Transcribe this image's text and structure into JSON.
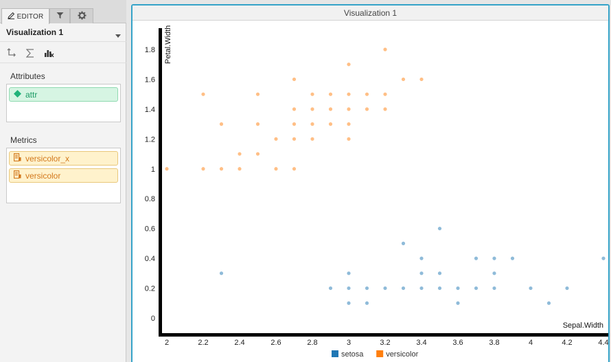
{
  "editor": {
    "tabs": [
      {
        "label": "EDITOR",
        "icon": "pencil-icon"
      },
      {
        "label": "",
        "icon": "filter-icon"
      },
      {
        "label": "",
        "icon": "gear-icon"
      }
    ],
    "viz_name": "Visualization 1",
    "toolbar": [
      "swap-axes-icon",
      "sigma-icon",
      "chart-type-icon"
    ],
    "attributes_title": "Attributes",
    "attributes": [
      {
        "label": "attr",
        "icon": "diamond-icon"
      }
    ],
    "metrics_title": "Metrics",
    "metrics": [
      {
        "label": "versicolor_x",
        "icon": "metric-icon"
      },
      {
        "label": "versicolor",
        "icon": "metric-icon"
      }
    ]
  },
  "viz": {
    "title": "Visualization 1"
  },
  "colors": {
    "setosa": "#1f77b4",
    "versicolor": "#ff7f0e",
    "accent": "#35a3c8"
  },
  "chart_data": {
    "type": "scatter",
    "xlabel": "Sepal.Width",
    "ylabel": "Petal.Width",
    "xlim": [
      2,
      4.4
    ],
    "ylim": [
      0,
      1.8
    ],
    "x_ticks": [
      "2",
      "2.2",
      "2.4",
      "2.6",
      "2.8",
      "3",
      "3.2",
      "3.4",
      "3.6",
      "3.8",
      "4",
      "4.2",
      "4.4"
    ],
    "y_ticks": [
      "0",
      "0.2",
      "0.4",
      "0.6",
      "0.8",
      "1",
      "1.2",
      "1.4",
      "1.6",
      "1.8"
    ],
    "legend_position": "bottom",
    "series": [
      {
        "name": "setosa",
        "color": "#1f77b4",
        "points": [
          [
            2.3,
            0.3
          ],
          [
            2.9,
            0.2
          ],
          [
            3.0,
            0.1
          ],
          [
            3.0,
            0.2
          ],
          [
            3.0,
            0.3
          ],
          [
            3.1,
            0.1
          ],
          [
            3.1,
            0.2
          ],
          [
            3.2,
            0.2
          ],
          [
            3.3,
            0.2
          ],
          [
            3.3,
            0.5
          ],
          [
            3.4,
            0.2
          ],
          [
            3.4,
            0.3
          ],
          [
            3.4,
            0.4
          ],
          [
            3.5,
            0.2
          ],
          [
            3.5,
            0.3
          ],
          [
            3.5,
            0.6
          ],
          [
            3.6,
            0.1
          ],
          [
            3.6,
            0.2
          ],
          [
            3.7,
            0.2
          ],
          [
            3.7,
            0.4
          ],
          [
            3.8,
            0.2
          ],
          [
            3.8,
            0.3
          ],
          [
            3.8,
            0.4
          ],
          [
            3.9,
            0.4
          ],
          [
            4.0,
            0.2
          ],
          [
            4.1,
            0.1
          ],
          [
            4.2,
            0.2
          ],
          [
            4.4,
            0.4
          ]
        ]
      },
      {
        "name": "versicolor",
        "color": "#ff7f0e",
        "points": [
          [
            2.0,
            1.0
          ],
          [
            2.2,
            1.0
          ],
          [
            2.2,
            1.5
          ],
          [
            2.3,
            1.0
          ],
          [
            2.3,
            1.3
          ],
          [
            2.4,
            1.0
          ],
          [
            2.4,
            1.1
          ],
          [
            2.5,
            1.1
          ],
          [
            2.5,
            1.3
          ],
          [
            2.5,
            1.5
          ],
          [
            2.6,
            1.0
          ],
          [
            2.6,
            1.2
          ],
          [
            2.7,
            1.0
          ],
          [
            2.7,
            1.2
          ],
          [
            2.7,
            1.3
          ],
          [
            2.7,
            1.4
          ],
          [
            2.7,
            1.6
          ],
          [
            2.8,
            1.2
          ],
          [
            2.8,
            1.3
          ],
          [
            2.8,
            1.4
          ],
          [
            2.8,
            1.5
          ],
          [
            2.9,
            1.3
          ],
          [
            2.9,
            1.4
          ],
          [
            2.9,
            1.5
          ],
          [
            3.0,
            1.2
          ],
          [
            3.0,
            1.3
          ],
          [
            3.0,
            1.4
          ],
          [
            3.0,
            1.5
          ],
          [
            3.0,
            1.7
          ],
          [
            3.1,
            1.4
          ],
          [
            3.1,
            1.5
          ],
          [
            3.2,
            1.4
          ],
          [
            3.2,
            1.5
          ],
          [
            3.2,
            1.8
          ],
          [
            3.3,
            1.6
          ],
          [
            3.4,
            1.6
          ]
        ]
      }
    ]
  }
}
